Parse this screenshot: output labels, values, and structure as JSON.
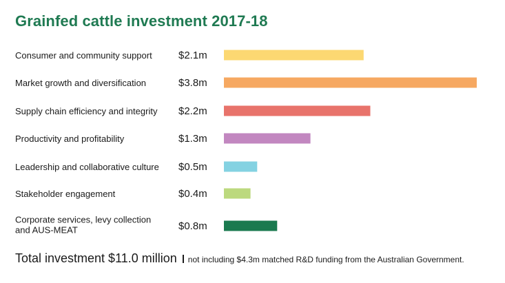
{
  "chart_data": {
    "type": "bar",
    "orientation": "horizontal",
    "title": "Grainfed cattle investment 2017-18",
    "categories": [
      [
        "Consumer and community support"
      ],
      [
        "Market growth and diversification"
      ],
      [
        "Supply chain efficiency and integrity"
      ],
      [
        "Productivity and profitability"
      ],
      [
        "Leadership and collaborative culture"
      ],
      [
        "Stakeholder engagement"
      ],
      [
        "Corporate services, levy collection",
        "and AUS-MEAT"
      ]
    ],
    "values": [
      2.1,
      3.8,
      2.2,
      1.3,
      0.5,
      0.4,
      0.8
    ],
    "value_labels": [
      "$2.1m",
      "$3.8m",
      "$2.2m",
      "$1.3m",
      "$0.5m",
      "$0.4m",
      "$0.8m"
    ],
    "colors": [
      "#fcd872",
      "#f6a861",
      "#e8736b",
      "#c287c0",
      "#84d2e2",
      "#bcd97e",
      "#1a7a4f"
    ],
    "units": "$m",
    "xlim": [
      0,
      3.8
    ],
    "grid": false,
    "legend": "none"
  },
  "footer": {
    "total": "Total investment $11.0 million",
    "note": "not including $4.3m matched R&D funding from the Australian Government."
  },
  "colors": {
    "title": "#1f7a52",
    "text": "#1a1a1a"
  }
}
